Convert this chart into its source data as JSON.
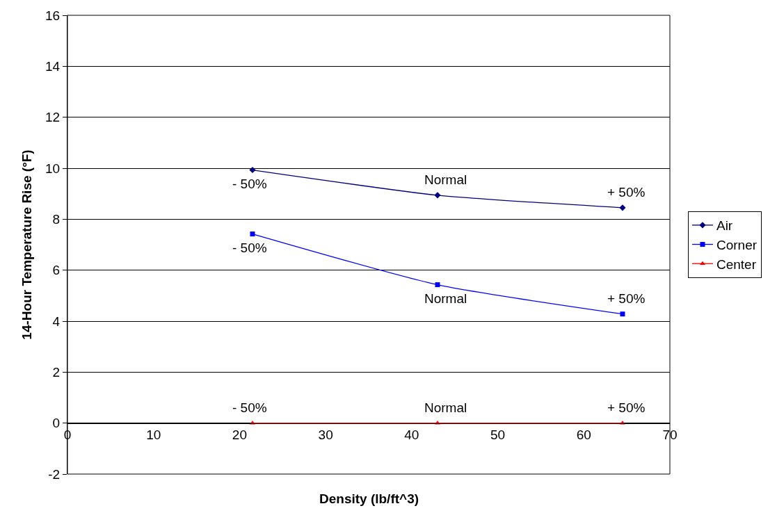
{
  "chart_data": {
    "type": "line",
    "xlabel": "Density (lb/ft^3)",
    "ylabel": "14-Hour Temperature Rise (°F)",
    "xlim": [
      0,
      70
    ],
    "xticks": [
      0,
      10,
      20,
      30,
      40,
      50,
      60,
      70
    ],
    "ylim": [
      -2,
      16
    ],
    "yticks": [
      -2,
      0,
      2,
      4,
      6,
      8,
      10,
      12,
      14,
      16
    ],
    "grid": "y",
    "legend": "right",
    "line_style": "solid",
    "x": [
      21.5,
      43,
      64.5
    ],
    "series": [
      {
        "name": "Air",
        "color": "#000080",
        "marker": "diamond",
        "values": [
          9.93,
          8.94,
          8.45
        ]
      },
      {
        "name": "Corner",
        "color": "#0000ff",
        "marker": "square",
        "values": [
          7.42,
          5.43,
          4.28
        ]
      },
      {
        "name": "Center",
        "color": "#ff0000",
        "marker": "triangle",
        "values": [
          0,
          0,
          0
        ]
      }
    ],
    "annotations": [
      {
        "text": "- 50%",
        "x": 21.5,
        "y": 9.93
      },
      {
        "text": "Normal",
        "x": 43,
        "y": 8.94
      },
      {
        "text": "+ 50%",
        "x": 64.5,
        "y": 8.45
      },
      {
        "text": "- 50%",
        "x": 21.5,
        "y": 7.42
      },
      {
        "text": "Normal",
        "x": 43,
        "y": 5.43
      },
      {
        "text": "+ 50%",
        "x": 64.5,
        "y": 4.28
      },
      {
        "text": "- 50%",
        "x": 21.5,
        "y": 0
      },
      {
        "text": "Normal",
        "x": 43,
        "y": 0
      },
      {
        "text": "+ 50%",
        "x": 64.5,
        "y": 0
      }
    ]
  }
}
